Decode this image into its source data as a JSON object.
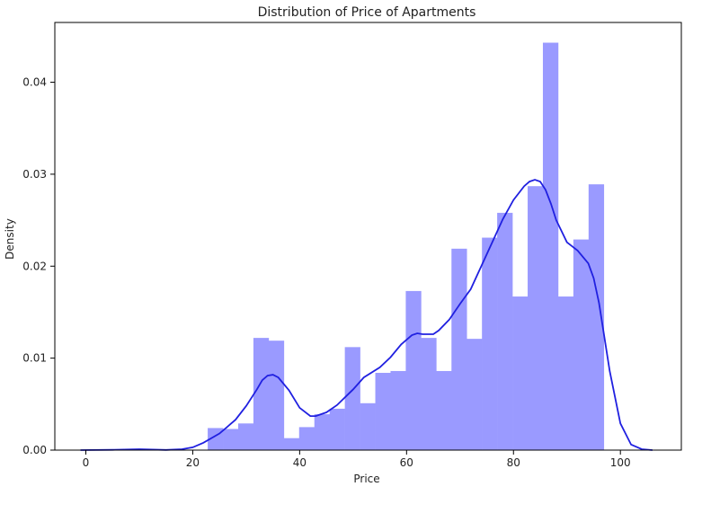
{
  "chart_data": {
    "type": "bar",
    "title": "Distribution of Price of Apartments",
    "xlabel": "Price",
    "ylabel": "Density",
    "xlim": [
      -5.8,
      111.4
    ],
    "ylim": [
      0,
      0.0465
    ],
    "xticks": [
      0,
      20,
      40,
      60,
      80,
      100
    ],
    "yticks": [
      0.0,
      0.01,
      0.02,
      0.03,
      0.04
    ],
    "ytick_labels": [
      "0.00",
      "0.01",
      "0.02",
      "0.03",
      "0.04"
    ],
    "grid": false,
    "legend": "none",
    "colors": {
      "bars": "#9a9aff",
      "kde_line": "#2020e0"
    },
    "histogram": {
      "bin_width": 2.85,
      "bins": [
        {
          "x0": 22.8,
          "value": 0.0024
        },
        {
          "x0": 25.65,
          "value": 0.0023
        },
        {
          "x0": 28.5,
          "value": 0.0029
        },
        {
          "x0": 31.35,
          "value": 0.0122
        },
        {
          "x0": 34.2,
          "value": 0.0119
        },
        {
          "x0": 37.05,
          "value": 0.0013
        },
        {
          "x0": 39.9,
          "value": 0.0025
        },
        {
          "x0": 42.75,
          "value": 0.0039
        },
        {
          "x0": 45.6,
          "value": 0.0045
        },
        {
          "x0": 48.45,
          "value": 0.0112
        },
        {
          "x0": 51.3,
          "value": 0.0051
        },
        {
          "x0": 54.15,
          "value": 0.0084
        },
        {
          "x0": 57.0,
          "value": 0.0086
        },
        {
          "x0": 59.85,
          "value": 0.0173
        },
        {
          "x0": 62.7,
          "value": 0.0122
        },
        {
          "x0": 65.55,
          "value": 0.0086
        },
        {
          "x0": 68.4,
          "value": 0.0219
        },
        {
          "x0": 71.25,
          "value": 0.0121
        },
        {
          "x0": 74.1,
          "value": 0.0231
        },
        {
          "x0": 76.95,
          "value": 0.0258
        },
        {
          "x0": 79.8,
          "value": 0.0167
        },
        {
          "x0": 82.65,
          "value": 0.0287
        },
        {
          "x0": 85.5,
          "value": 0.0443
        },
        {
          "x0": 88.35,
          "value": 0.0167
        },
        {
          "x0": 91.2,
          "value": 0.0229
        },
        {
          "x0": 94.05,
          "value": 0.0289
        }
      ]
    },
    "kde": {
      "x": [
        -1,
        5,
        10,
        15,
        18,
        20,
        22,
        25,
        28,
        30,
        32,
        33,
        34,
        35,
        36,
        38,
        40,
        42,
        43,
        45,
        47,
        50,
        52,
        55,
        57,
        59,
        61,
        62,
        63,
        65,
        66,
        68,
        70,
        72,
        75,
        78,
        80,
        82,
        83,
        84,
        85,
        86,
        87,
        88,
        90,
        92,
        94,
        95,
        96,
        98,
        100,
        102,
        104,
        106
      ],
      "y": [
        0.0,
        3e-05,
        0.0001,
        2e-05,
        0.0001,
        0.0003,
        0.0008,
        0.0018,
        0.0033,
        0.0048,
        0.0066,
        0.0076,
        0.0081,
        0.0082,
        0.0079,
        0.0065,
        0.0046,
        0.0037,
        0.0037,
        0.0041,
        0.0049,
        0.0066,
        0.0079,
        0.009,
        0.0101,
        0.0115,
        0.0125,
        0.0127,
        0.0126,
        0.0126,
        0.013,
        0.0142,
        0.0159,
        0.0175,
        0.0213,
        0.0251,
        0.0272,
        0.0287,
        0.0292,
        0.0294,
        0.0292,
        0.0283,
        0.0268,
        0.025,
        0.0226,
        0.0217,
        0.0203,
        0.0187,
        0.016,
        0.0086,
        0.0029,
        0.0006,
        0.0001,
        0.0
      ]
    }
  }
}
